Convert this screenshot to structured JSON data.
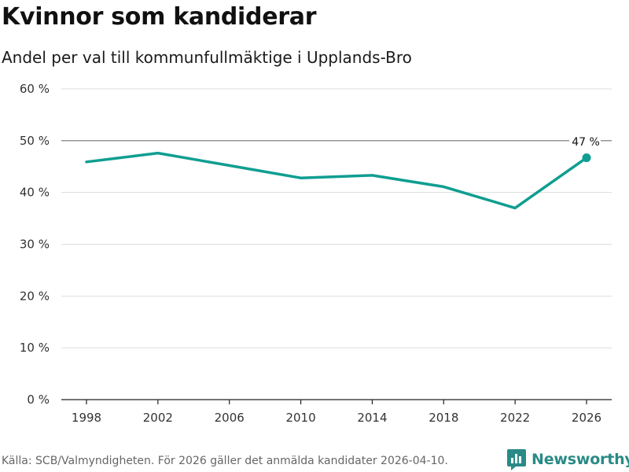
{
  "header": {
    "title": "Kvinnor som kandiderar",
    "subtitle": "Andel per val till kommunfullmäktige i Upplands-Bro"
  },
  "footer": {
    "source": "Källa: SCB/Valmyndigheten. För 2026 gäller det anmälda kandidater 2026-04-10.",
    "brand": "Newsworthy"
  },
  "colors": {
    "line": "#0f9e91",
    "grid": "#dddddd",
    "reference": "#777777",
    "brand": "#2a8a86"
  },
  "chart_data": {
    "type": "line",
    "title": "Kvinnor som kandiderar",
    "subtitle": "Andel per val till kommunfullmäktige i Upplands-Bro",
    "xlabel": "",
    "ylabel": "",
    "x": [
      1998,
      2002,
      2006,
      2010,
      2014,
      2018,
      2022,
      2026
    ],
    "series": [
      {
        "name": "Andel kvinnor",
        "values": [
          45.9,
          47.6,
          45.2,
          42.8,
          43.3,
          41.1,
          37.0,
          46.7
        ]
      }
    ],
    "x_ticks": [
      1998,
      2002,
      2006,
      2010,
      2014,
      2018,
      2022,
      2026
    ],
    "x_tick_labels": [
      "1998",
      "2002",
      "2006",
      "2010",
      "2014",
      "2018",
      "2022",
      "2026"
    ],
    "y_ticks": [
      0,
      10,
      20,
      30,
      40,
      50,
      60
    ],
    "y_tick_labels": [
      "0 %",
      "10 %",
      "20 %",
      "30 %",
      "40 %",
      "50 %",
      "60 %"
    ],
    "ylim": [
      0,
      60
    ],
    "reference_line": 50,
    "annotation": {
      "x": 2026,
      "value": 46.7,
      "label": "47 %"
    },
    "grid": true
  }
}
